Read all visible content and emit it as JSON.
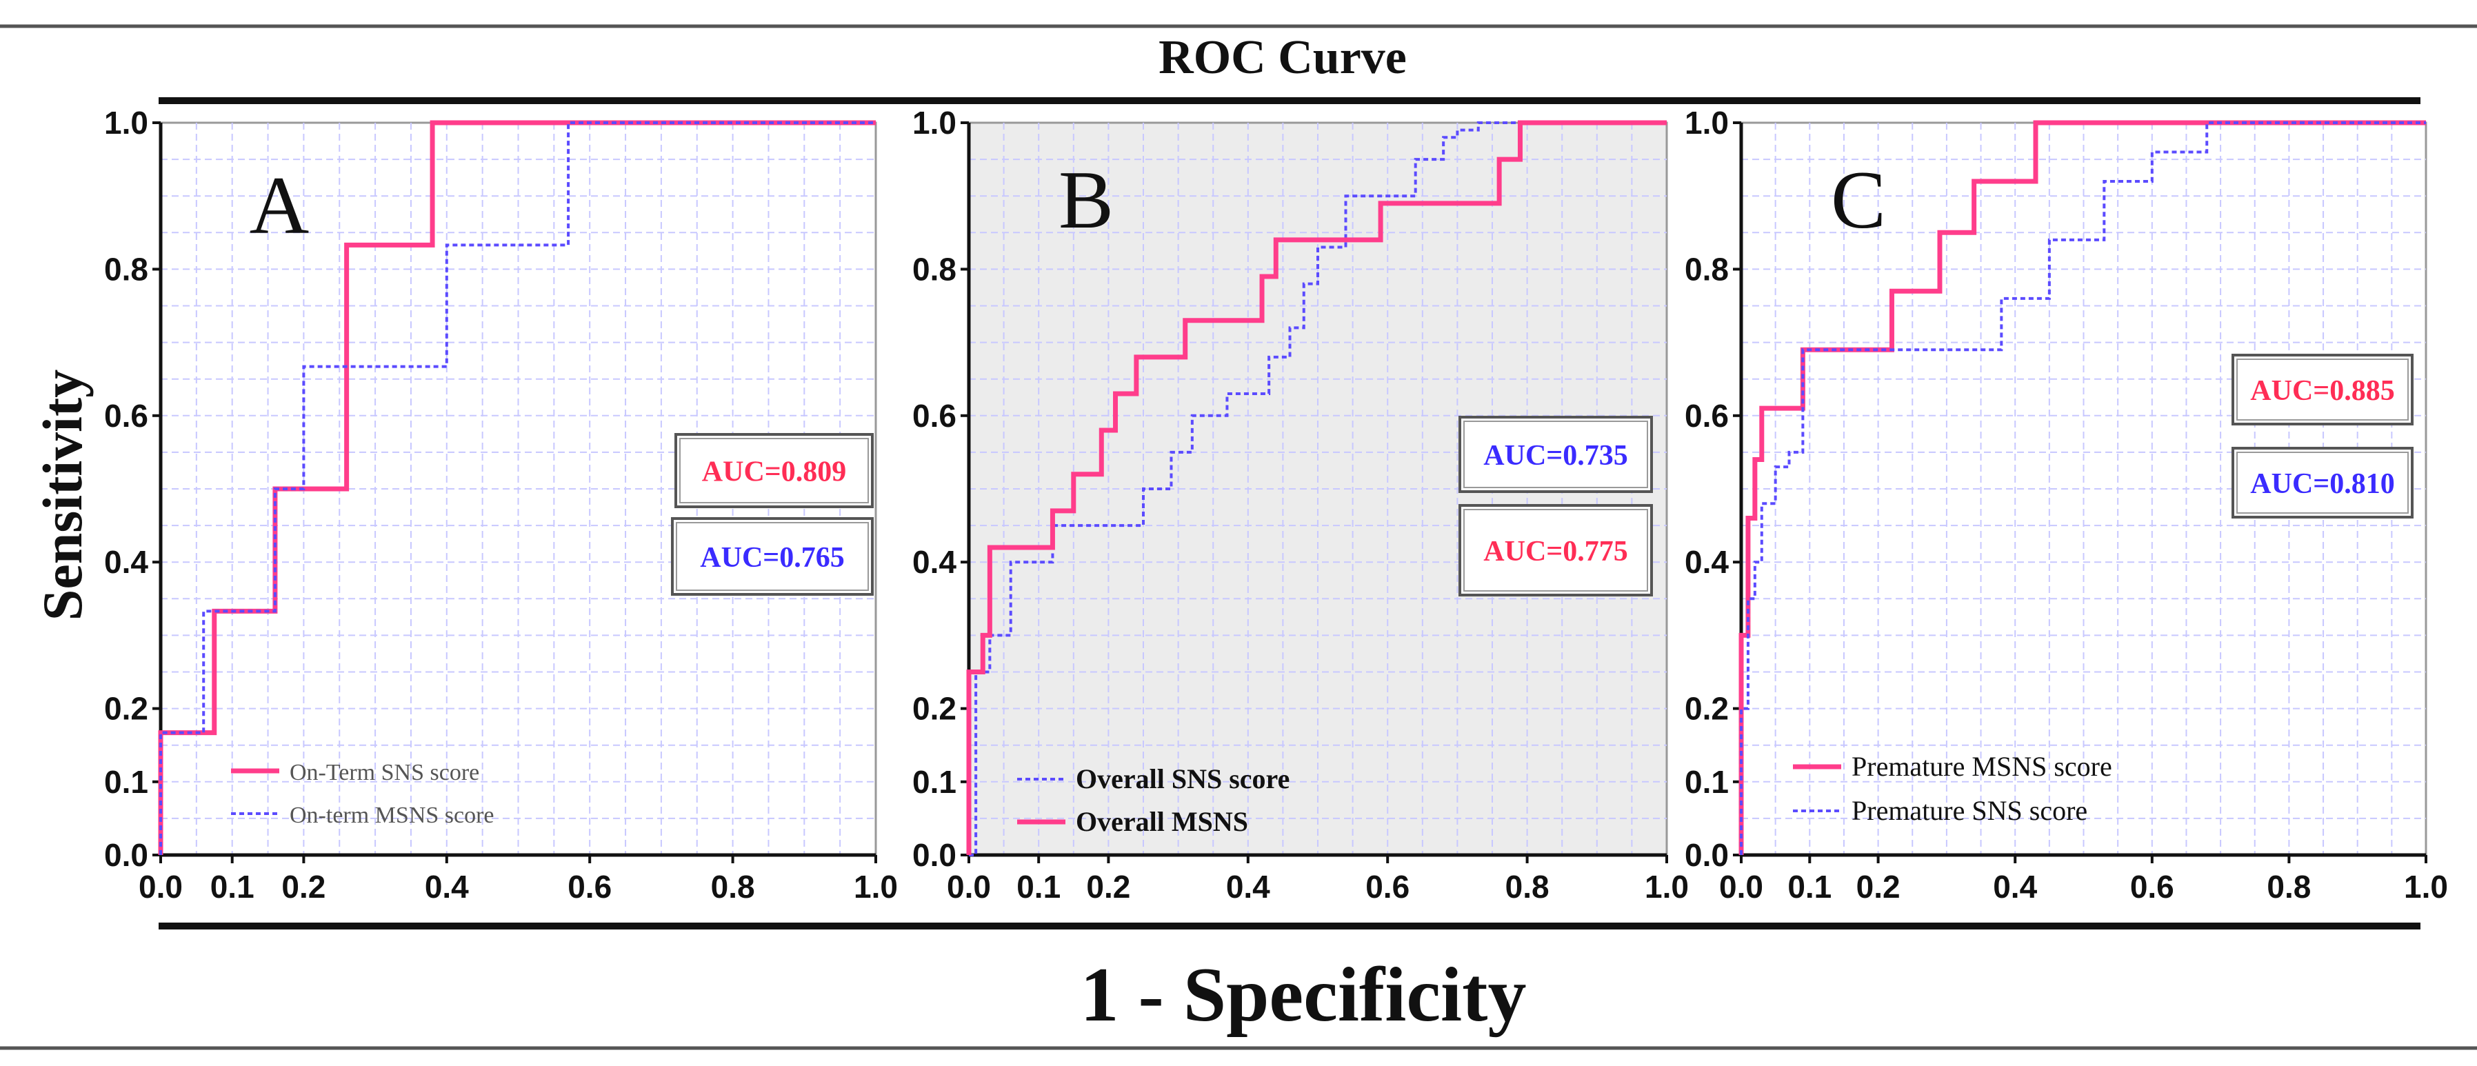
{
  "figure": {
    "title": "ROC Curve",
    "ylabel": "Sensitivity",
    "xlabel": "1 - Specificity"
  },
  "colors": {
    "pink": "#ff3d8b",
    "blue": "#5b4bff",
    "grid": "#c8c8ff",
    "panel_b_bg": "#ececec",
    "auc_pink_a": "#ff2d55",
    "auc_blue": "#3a2bff"
  },
  "chart_data": [
    {
      "type": "line",
      "panel": "A",
      "panel_label": "A",
      "xlim": [
        0,
        1
      ],
      "ylim": [
        0,
        1
      ],
      "x_ticks": [
        "0.0",
        "0.1",
        "0.2",
        "0.4",
        "0.6",
        "0.8",
        "1.0"
      ],
      "x_tick_values": [
        0,
        0.1,
        0.2,
        0.4,
        0.6,
        0.8,
        1.0
      ],
      "y_ticks": [
        "0.0",
        "0.1",
        "0.2",
        "0.4",
        "0.6",
        "0.8",
        "1.0"
      ],
      "y_tick_values": [
        0,
        0.1,
        0.2,
        0.4,
        0.6,
        0.8,
        1.0
      ],
      "background": "white",
      "legend_position": "bottom-left",
      "series": [
        {
          "name": "On-Term SNS score",
          "color": "#ff3d8b",
          "style": "solid",
          "auc_label": "AUC=0.809",
          "auc_color": "#ff2d55",
          "x": [
            0,
            0,
            0.075,
            0.075,
            0.16,
            0.16,
            0.26,
            0.26,
            0.38,
            0.38,
            1.0
          ],
          "y": [
            0,
            0.167,
            0.167,
            0.333,
            0.333,
            0.5,
            0.5,
            0.833,
            0.833,
            1.0,
            1.0
          ]
        },
        {
          "name": "On-term MSNS score",
          "color": "#5b4bff",
          "style": "dotted",
          "auc_label": "AUC=0.765",
          "auc_color": "#3a2bff",
          "x": [
            0,
            0,
            0.06,
            0.06,
            0.16,
            0.16,
            0.2,
            0.2,
            0.4,
            0.4,
            0.57,
            0.57,
            1.0
          ],
          "y": [
            0,
            0.167,
            0.167,
            0.333,
            0.333,
            0.5,
            0.5,
            0.667,
            0.667,
            0.833,
            0.833,
            1.0,
            1.0
          ]
        }
      ]
    },
    {
      "type": "line",
      "panel": "B",
      "panel_label": "B",
      "xlim": [
        0,
        1
      ],
      "ylim": [
        0,
        1
      ],
      "x_ticks": [
        "0.0",
        "0.1",
        "0.2",
        "0.4",
        "0.6",
        "0.8",
        "1.0"
      ],
      "x_tick_values": [
        0,
        0.1,
        0.2,
        0.4,
        0.6,
        0.8,
        1.0
      ],
      "y_ticks": [
        "0.0",
        "0.1",
        "0.2",
        "0.4",
        "0.6",
        "0.8",
        "1.0"
      ],
      "y_tick_values": [
        0,
        0.1,
        0.2,
        0.4,
        0.6,
        0.8,
        1.0
      ],
      "background": "gray",
      "legend_position": "bottom-left",
      "series": [
        {
          "name": "Overall SNS score",
          "color": "#5b4bff",
          "style": "dotted",
          "auc_label": "AUC=0.735",
          "auc_color": "#3a2bff",
          "x": [
            0,
            0.01,
            0.01,
            0.03,
            0.03,
            0.06,
            0.06,
            0.12,
            0.12,
            0.25,
            0.25,
            0.29,
            0.29,
            0.32,
            0.32,
            0.37,
            0.37,
            0.43,
            0.43,
            0.46,
            0.46,
            0.48,
            0.48,
            0.5,
            0.5,
            0.54,
            0.54,
            0.64,
            0.64,
            0.68,
            0.68,
            0.7,
            0.7,
            0.73,
            0.73,
            1.0
          ],
          "y": [
            0,
            0,
            0.25,
            0.25,
            0.3,
            0.3,
            0.4,
            0.4,
            0.45,
            0.45,
            0.5,
            0.5,
            0.55,
            0.55,
            0.6,
            0.6,
            0.63,
            0.63,
            0.68,
            0.68,
            0.72,
            0.72,
            0.78,
            0.78,
            0.83,
            0.83,
            0.9,
            0.9,
            0.95,
            0.95,
            0.98,
            0.98,
            0.99,
            0.99,
            1.0,
            1.0
          ]
        },
        {
          "name": "Overall MSNS",
          "color": "#ff3d8b",
          "style": "solid",
          "auc_label": "AUC=0.775",
          "auc_color": "#ff2d55",
          "x": [
            0,
            0,
            0.02,
            0.02,
            0.03,
            0.03,
            0.12,
            0.12,
            0.15,
            0.15,
            0.19,
            0.19,
            0.21,
            0.21,
            0.24,
            0.24,
            0.31,
            0.31,
            0.42,
            0.42,
            0.44,
            0.44,
            0.59,
            0.59,
            0.76,
            0.76,
            0.79,
            0.79,
            1.0
          ],
          "y": [
            0,
            0.25,
            0.25,
            0.3,
            0.3,
            0.42,
            0.42,
            0.47,
            0.47,
            0.52,
            0.52,
            0.58,
            0.58,
            0.63,
            0.63,
            0.68,
            0.68,
            0.73,
            0.73,
            0.79,
            0.79,
            0.84,
            0.84,
            0.89,
            0.89,
            0.95,
            0.95,
            1.0,
            1.0
          ]
        }
      ]
    },
    {
      "type": "line",
      "panel": "C",
      "panel_label": "C",
      "xlim": [
        0,
        1
      ],
      "ylim": [
        0,
        1
      ],
      "x_ticks": [
        "0.0",
        "0.1",
        "0.2",
        "0.4",
        "0.6",
        "0.8",
        "1.0"
      ],
      "x_tick_values": [
        0,
        0.1,
        0.2,
        0.4,
        0.6,
        0.8,
        1.0
      ],
      "y_ticks": [
        "0.0",
        "0.1",
        "0.2",
        "0.4",
        "0.6",
        "0.8",
        "1.0"
      ],
      "y_tick_values": [
        0,
        0.1,
        0.2,
        0.4,
        0.6,
        0.8,
        1.0
      ],
      "background": "white",
      "legend_position": "bottom-left",
      "series": [
        {
          "name": "Premature MSNS score",
          "color": "#ff3d8b",
          "style": "solid",
          "auc_label": "AUC=0.885",
          "auc_color": "#ff2d55",
          "x": [
            0,
            0,
            0.01,
            0.01,
            0.02,
            0.02,
            0.03,
            0.03,
            0.05,
            0.05,
            0.09,
            0.09,
            0.22,
            0.22,
            0.29,
            0.29,
            0.34,
            0.34,
            0.43,
            0.43,
            1.0
          ],
          "y": [
            0,
            0.3,
            0.3,
            0.46,
            0.46,
            0.54,
            0.54,
            0.61,
            0.61,
            0.61,
            0.61,
            0.69,
            0.69,
            0.77,
            0.77,
            0.85,
            0.85,
            0.92,
            0.92,
            1.0,
            1.0
          ]
        },
        {
          "name": "Premature SNS score",
          "color": "#5b4bff",
          "style": "dotted",
          "auc_label": "AUC=0.810",
          "auc_color": "#3a2bff",
          "x": [
            0,
            0,
            0.01,
            0.01,
            0.02,
            0.02,
            0.03,
            0.03,
            0.05,
            0.05,
            0.07,
            0.07,
            0.09,
            0.09,
            0.38,
            0.38,
            0.45,
            0.45,
            0.53,
            0.53,
            0.6,
            0.6,
            0.68,
            0.68,
            1.0
          ],
          "y": [
            0,
            0.2,
            0.2,
            0.35,
            0.35,
            0.4,
            0.4,
            0.48,
            0.48,
            0.53,
            0.53,
            0.55,
            0.55,
            0.69,
            0.69,
            0.76,
            0.76,
            0.84,
            0.84,
            0.92,
            0.92,
            0.96,
            0.96,
            1.0,
            1.0
          ]
        }
      ]
    }
  ]
}
